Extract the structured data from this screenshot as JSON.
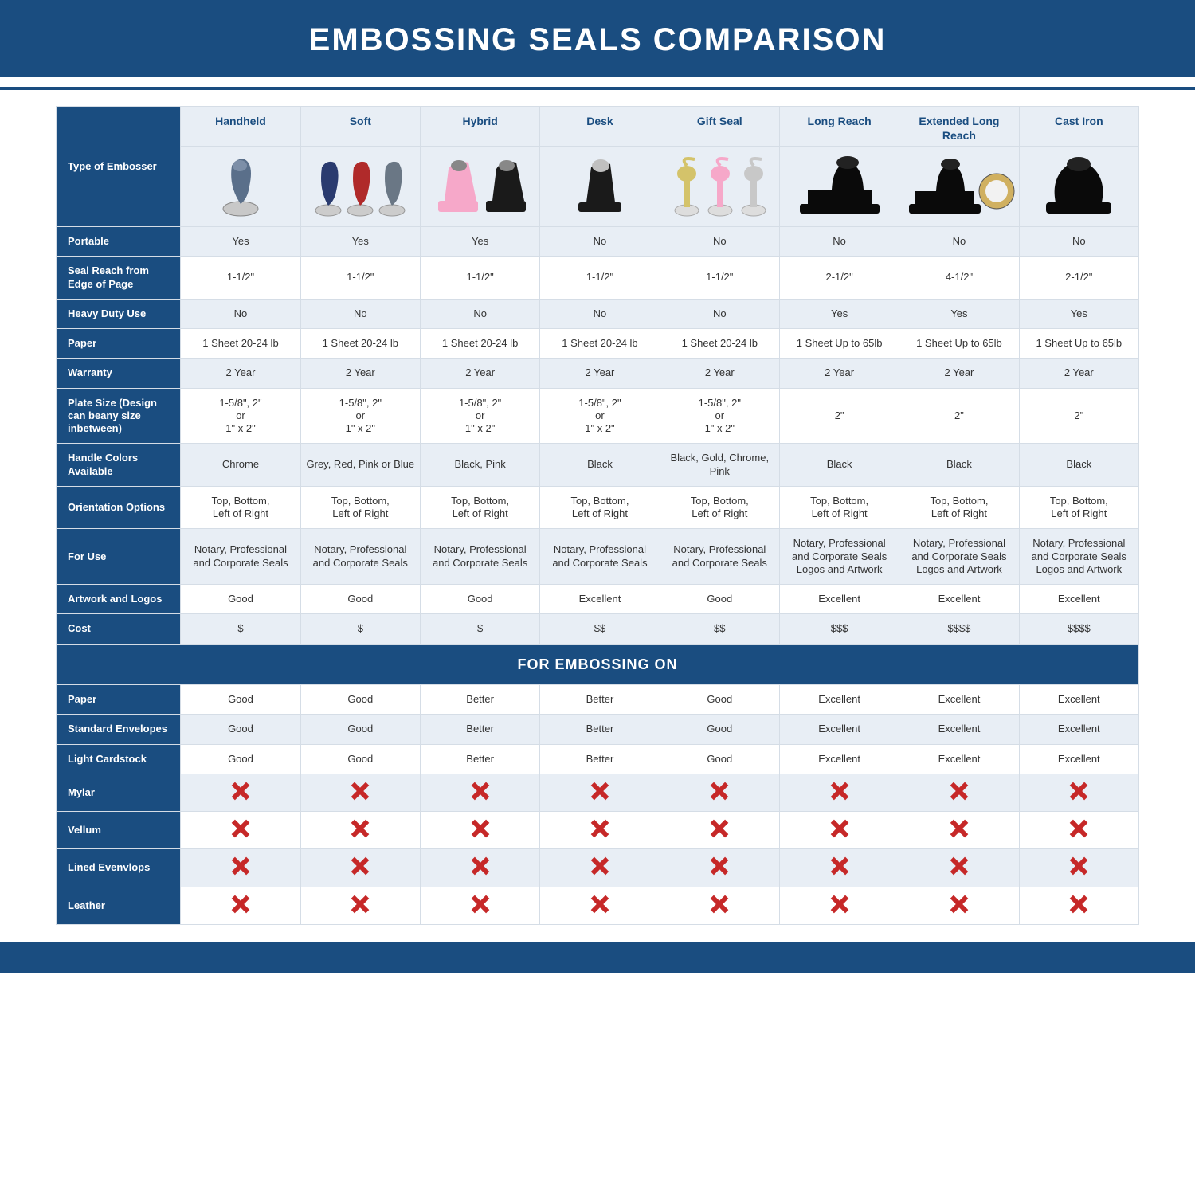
{
  "title": "EMBOSSING SEALS COMPARISON",
  "colors": {
    "brand": "#1a4d80",
    "header_bg": "#e8eef5",
    "row_alt": "#e8eef5",
    "border": "#d5dde6",
    "x_mark": "#c62828",
    "text": "#333333"
  },
  "columns": [
    {
      "label": "Handheld",
      "icon": "handheld"
    },
    {
      "label": "Soft",
      "icon": "soft"
    },
    {
      "label": "Hybrid",
      "icon": "hybrid"
    },
    {
      "label": "Desk",
      "icon": "desk"
    },
    {
      "label": "Gift Seal",
      "icon": "gift"
    },
    {
      "label": "Long Reach",
      "icon": "longreach"
    },
    {
      "label": "Extended Long Reach",
      "icon": "extlong"
    },
    {
      "label": "Cast Iron",
      "icon": "castiron"
    }
  ],
  "row_header_top": "Type of Embosser",
  "rows": [
    {
      "label": "Portable",
      "alt": true,
      "cells": [
        "Yes",
        "Yes",
        "Yes",
        "No",
        "No",
        "No",
        "No",
        "No"
      ]
    },
    {
      "label": "Seal Reach from Edge of Page",
      "alt": false,
      "cells": [
        "1-1/2\"",
        "1-1/2\"",
        "1-1/2\"",
        "1-1/2\"",
        "1-1/2\"",
        "2-1/2\"",
        "4-1/2\"",
        "2-1/2\""
      ]
    },
    {
      "label": "Heavy Duty Use",
      "alt": true,
      "cells": [
        "No",
        "No",
        "No",
        "No",
        "No",
        "Yes",
        "Yes",
        "Yes"
      ]
    },
    {
      "label": "Paper",
      "alt": false,
      "cells": [
        "1 Sheet 20-24 lb",
        "1 Sheet 20-24 lb",
        "1 Sheet 20-24 lb",
        "1 Sheet 20-24 lb",
        "1 Sheet 20-24 lb",
        "1 Sheet Up to 65lb",
        "1 Sheet Up to 65lb",
        "1 Sheet Up to 65lb"
      ]
    },
    {
      "label": "Warranty",
      "alt": true,
      "cells": [
        "2 Year",
        "2 Year",
        "2 Year",
        "2 Year",
        "2 Year",
        "2 Year",
        "2 Year",
        "2 Year"
      ]
    },
    {
      "label": "Plate Size (Design can beany size inbetween)",
      "alt": false,
      "cells": [
        "1-5/8\", 2\"\nor\n1\" x 2\"",
        "1-5/8\", 2\"\nor\n1\" x 2\"",
        "1-5/8\", 2\"\nor\n1\" x 2\"",
        "1-5/8\", 2\"\nor\n1\" x 2\"",
        "1-5/8\", 2\"\nor\n1\" x 2\"",
        "2\"",
        "2\"",
        "2\""
      ]
    },
    {
      "label": "Handle Colors Available",
      "alt": true,
      "cells": [
        "Chrome",
        "Grey, Red, Pink or Blue",
        "Black, Pink",
        "Black",
        "Black, Gold, Chrome, Pink",
        "Black",
        "Black",
        "Black"
      ]
    },
    {
      "label": "Orientation Options",
      "alt": false,
      "cells": [
        "Top, Bottom,\nLeft of Right",
        "Top, Bottom,\nLeft of Right",
        "Top, Bottom,\nLeft of Right",
        "Top, Bottom,\nLeft of Right",
        "Top, Bottom,\nLeft of Right",
        "Top, Bottom,\nLeft of Right",
        "Top, Bottom,\nLeft of Right",
        "Top, Bottom,\nLeft of Right"
      ]
    },
    {
      "label": "For Use",
      "alt": true,
      "cells": [
        "Notary, Professional and Corporate Seals",
        "Notary, Professional and Corporate Seals",
        "Notary, Professional and Corporate Seals",
        "Notary, Professional and Corporate Seals",
        "Notary, Professional and Corporate Seals",
        "Notary, Professional and Corporate Seals Logos and Artwork",
        "Notary, Professional and Corporate Seals Logos and Artwork",
        "Notary, Professional and Corporate Seals Logos and Artwork"
      ]
    },
    {
      "label": "Artwork and Logos",
      "alt": false,
      "cells": [
        "Good",
        "Good",
        "Good",
        "Excellent",
        "Good",
        "Excellent",
        "Excellent",
        "Excellent"
      ]
    },
    {
      "label": "Cost",
      "alt": true,
      "cells": [
        "$",
        "$",
        "$",
        "$$",
        "$$",
        "$$$",
        "$$$$",
        "$$$$"
      ]
    }
  ],
  "section_label": "FOR EMBOSSING ON",
  "rows2": [
    {
      "label": "Paper",
      "alt": false,
      "cells": [
        "Good",
        "Good",
        "Better",
        "Better",
        "Good",
        "Excellent",
        "Excellent",
        "Excellent"
      ]
    },
    {
      "label": "Standard Envelopes",
      "alt": true,
      "cells": [
        "Good",
        "Good",
        "Better",
        "Better",
        "Good",
        "Excellent",
        "Excellent",
        "Excellent"
      ]
    },
    {
      "label": "Light Cardstock",
      "alt": false,
      "cells": [
        "Good",
        "Good",
        "Better",
        "Better",
        "Good",
        "Excellent",
        "Excellent",
        "Excellent"
      ]
    },
    {
      "label": "Mylar",
      "alt": true,
      "cells": [
        "X",
        "X",
        "X",
        "X",
        "X",
        "X",
        "X",
        "X"
      ]
    },
    {
      "label": "Vellum",
      "alt": false,
      "cells": [
        "X",
        "X",
        "X",
        "X",
        "X",
        "X",
        "X",
        "X"
      ]
    },
    {
      "label": "Lined Evenvlops",
      "alt": true,
      "cells": [
        "X",
        "X",
        "X",
        "X",
        "X",
        "X",
        "X",
        "X"
      ]
    },
    {
      "label": "Leather",
      "alt": false,
      "cells": [
        "X",
        "X",
        "X",
        "X",
        "X",
        "X",
        "X",
        "X"
      ]
    }
  ],
  "icons": {
    "handheld": {
      "body": "#5a6f8a",
      "disc": "#c8c8c8"
    },
    "soft": {
      "variants": [
        "#2a3b6f",
        "#b02a2a",
        "#6a7785"
      ]
    },
    "hybrid": {
      "variants": [
        "#f6a8c9",
        "#1a1a1a"
      ]
    },
    "desk": {
      "body": "#1a1a1a",
      "disc": "#c0c0c0"
    },
    "gift": {
      "variants": [
        "#d4c36a",
        "#f6a8c9",
        "#c8c8c8"
      ]
    },
    "longreach": {
      "body": "#0a0a0a"
    },
    "extlong": {
      "body": "#0a0a0a",
      "disc": "#d0b060"
    },
    "castiron": {
      "body": "#0a0a0a"
    }
  }
}
